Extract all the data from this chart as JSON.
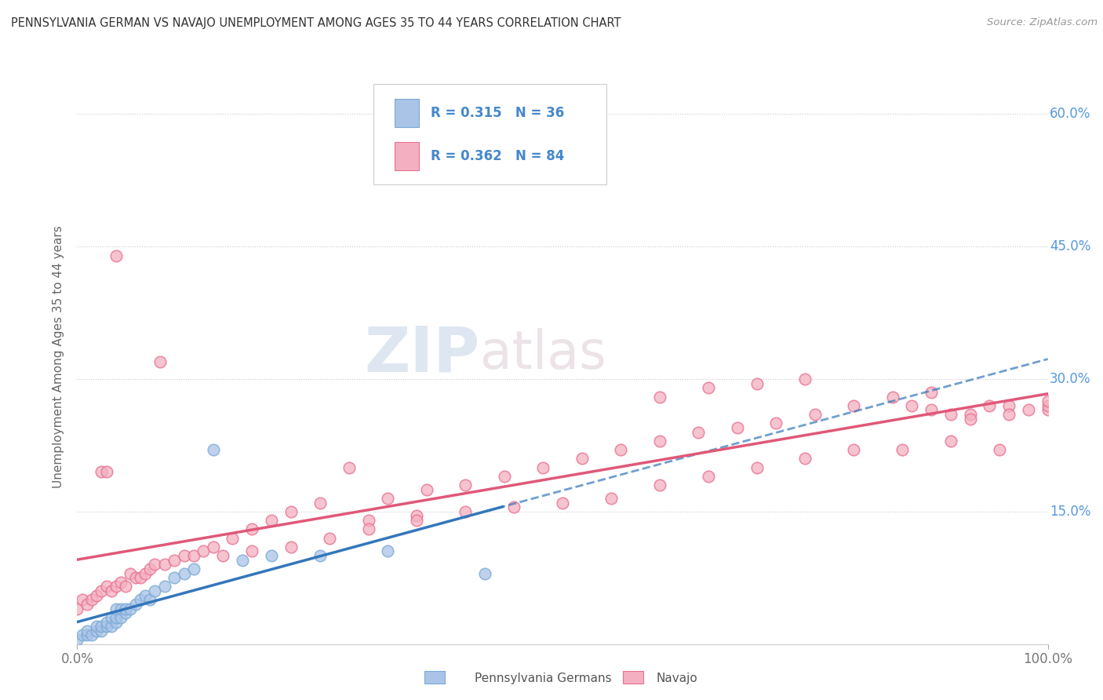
{
  "title": "PENNSYLVANIA GERMAN VS NAVAJO UNEMPLOYMENT AMONG AGES 35 TO 44 YEARS CORRELATION CHART",
  "source_text": "Source: ZipAtlas.com",
  "ylabel": "Unemployment Among Ages 35 to 44 years",
  "bg_color": "#ffffff",
  "grid_color": "#dddddd",
  "penn_color": "#aac4e8",
  "penn_edge_color": "#7aaad4",
  "penn_line_color": "#3377bb",
  "navajo_color": "#f4b0c0",
  "navajo_edge_color": "#e87090",
  "navajo_line_color": "#e05878",
  "legend_R_penn": "0.315",
  "legend_N_penn": "36",
  "legend_R_navajo": "0.362",
  "legend_N_navajo": "84",
  "watermark_zip": "ZIP",
  "watermark_atlas": "atlas",
  "penn_scatter_x": [
    0.0,
    0.005,
    0.01,
    0.01,
    0.015,
    0.02,
    0.02,
    0.025,
    0.025,
    0.03,
    0.03,
    0.035,
    0.035,
    0.04,
    0.04,
    0.04,
    0.045,
    0.045,
    0.05,
    0.05,
    0.055,
    0.06,
    0.065,
    0.07,
    0.075,
    0.08,
    0.09,
    0.1,
    0.11,
    0.12,
    0.14,
    0.17,
    0.2,
    0.25,
    0.32,
    0.42
  ],
  "penn_scatter_y": [
    0.005,
    0.01,
    0.01,
    0.015,
    0.01,
    0.015,
    0.02,
    0.015,
    0.02,
    0.02,
    0.025,
    0.02,
    0.03,
    0.025,
    0.03,
    0.04,
    0.03,
    0.04,
    0.035,
    0.04,
    0.04,
    0.045,
    0.05,
    0.055,
    0.05,
    0.06,
    0.065,
    0.075,
    0.08,
    0.085,
    0.22,
    0.095,
    0.1,
    0.1,
    0.105,
    0.08
  ],
  "navajo_scatter_x": [
    0.0,
    0.005,
    0.01,
    0.015,
    0.02,
    0.025,
    0.025,
    0.03,
    0.03,
    0.035,
    0.04,
    0.04,
    0.045,
    0.05,
    0.055,
    0.06,
    0.065,
    0.07,
    0.075,
    0.08,
    0.085,
    0.09,
    0.1,
    0.11,
    0.12,
    0.13,
    0.14,
    0.16,
    0.18,
    0.2,
    0.22,
    0.25,
    0.28,
    0.32,
    0.36,
    0.4,
    0.44,
    0.48,
    0.52,
    0.56,
    0.6,
    0.64,
    0.68,
    0.72,
    0.76,
    0.8,
    0.84,
    0.88,
    0.92,
    0.96,
    1.0,
    1.0,
    1.0,
    0.98,
    0.96,
    0.94,
    0.92,
    0.9,
    0.88,
    0.86,
    0.3,
    0.35,
    0.4,
    0.45,
    0.5,
    0.55,
    0.6,
    0.65,
    0.7,
    0.75,
    0.8,
    0.85,
    0.9,
    0.95,
    0.15,
    0.18,
    0.22,
    0.26,
    0.3,
    0.35,
    0.6,
    0.65,
    0.7,
    0.75
  ],
  "navajo_scatter_y": [
    0.04,
    0.05,
    0.045,
    0.05,
    0.055,
    0.06,
    0.195,
    0.065,
    0.195,
    0.06,
    0.065,
    0.44,
    0.07,
    0.065,
    0.08,
    0.075,
    0.075,
    0.08,
    0.085,
    0.09,
    0.32,
    0.09,
    0.095,
    0.1,
    0.1,
    0.105,
    0.11,
    0.12,
    0.13,
    0.14,
    0.15,
    0.16,
    0.2,
    0.165,
    0.175,
    0.18,
    0.19,
    0.2,
    0.21,
    0.22,
    0.23,
    0.24,
    0.245,
    0.25,
    0.26,
    0.27,
    0.28,
    0.285,
    0.26,
    0.27,
    0.265,
    0.27,
    0.275,
    0.265,
    0.26,
    0.27,
    0.255,
    0.26,
    0.265,
    0.27,
    0.14,
    0.145,
    0.15,
    0.155,
    0.16,
    0.165,
    0.18,
    0.19,
    0.2,
    0.21,
    0.22,
    0.22,
    0.23,
    0.22,
    0.1,
    0.105,
    0.11,
    0.12,
    0.13,
    0.14,
    0.28,
    0.29,
    0.295,
    0.3
  ],
  "xlim": [
    0.0,
    1.0
  ],
  "ylim": [
    0.0,
    0.65
  ],
  "yticks": [
    0.15,
    0.3,
    0.45,
    0.6
  ],
  "ytick_labels": [
    "15.0%",
    "30.0%",
    "45.0%",
    "60.0%"
  ],
  "xtick_labels": [
    "0.0%",
    "100.0%"
  ]
}
